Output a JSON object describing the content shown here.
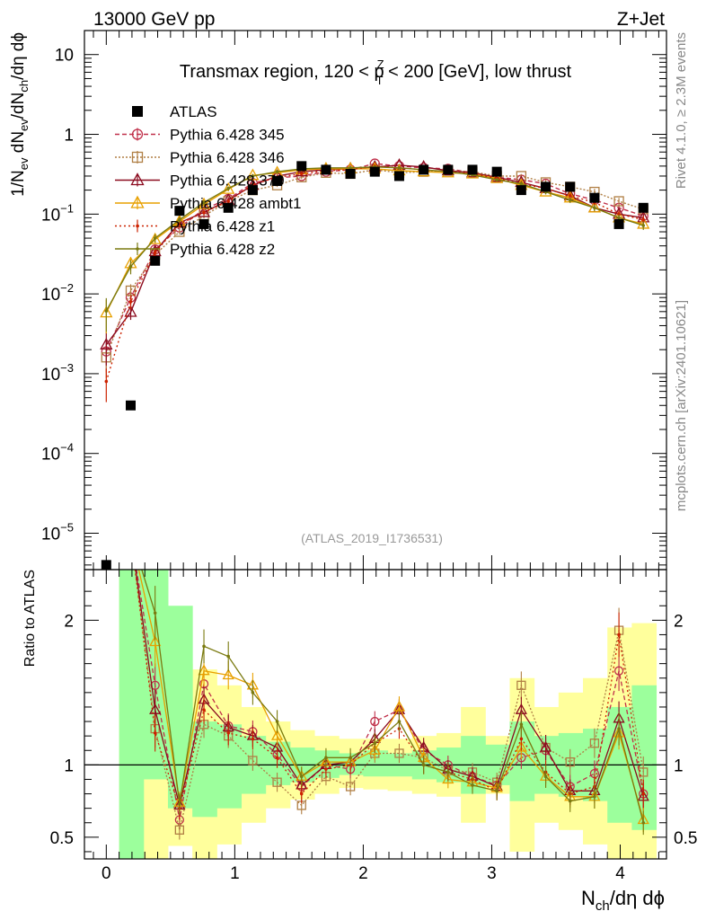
{
  "header": {
    "left": "13000 GeV pp",
    "right": "Z+Jet"
  },
  "side_labels": {
    "rivet": "Rivet 4.1.0, ≥ 2.3M events",
    "source": "mcplots.cern.ch [arXiv:2401.10621]"
  },
  "chart_data": [
    {
      "type": "scatter",
      "panel": "main",
      "title": "Transmax region, 120 < p_T^Z < 200 [GeV], low thrust",
      "title_parts": {
        "pre": "Transmax region, 120 < p",
        "sup": "Z",
        "sub": "T",
        "post": " < 200 [GeV], low thrust"
      },
      "watermark": "(ATLAS_2019_I1736531)",
      "ylabel": "1/N_ev dN_ev/dN_ch/dη dϕ",
      "ylabel_parts": [
        "1/N",
        "ev",
        " dN",
        "ev",
        "/dN",
        "ch",
        "/dη dϕ"
      ],
      "yscale": "log",
      "ylim": [
        3.5e-06,
        20
      ],
      "xlim": [
        -0.17,
        4.36
      ],
      "yticks": [
        {
          "value": 10,
          "label": "10"
        },
        {
          "value": 1,
          "label": "1"
        },
        {
          "value": 0.1,
          "label": "10",
          "exp": "−1"
        },
        {
          "value": 0.01,
          "label": "10",
          "exp": "−2"
        },
        {
          "value": 0.001,
          "label": "10",
          "exp": "−3"
        },
        {
          "value": 0.0001,
          "label": "10",
          "exp": "−4"
        },
        {
          "value": 1e-05,
          "label": "10",
          "exp": "−5"
        }
      ],
      "x": [
        0.0,
        0.19,
        0.38,
        0.57,
        0.76,
        0.95,
        1.14,
        1.33,
        1.52,
        1.71,
        1.9,
        2.09,
        2.28,
        2.47,
        2.66,
        2.85,
        3.04,
        3.23,
        3.42,
        3.61,
        3.8,
        3.99,
        4.18
      ],
      "series": [
        {
          "name": "ATLAS",
          "color": "#000000",
          "marker": "square-filled",
          "dash": "none",
          "values": [
            4e-06,
            0.0004,
            0.026,
            0.11,
            0.075,
            0.12,
            0.2,
            0.26,
            0.4,
            0.36,
            0.32,
            0.34,
            0.3,
            0.36,
            0.36,
            0.36,
            0.34,
            0.2,
            0.22,
            0.22,
            0.16,
            0.075,
            0.12
          ]
        },
        {
          "name": "Pythia 6.428 345",
          "color": "#c0304a",
          "marker": "circle-open",
          "dash": "5,3",
          "values": [
            0.0019,
            0.009,
            0.036,
            0.068,
            0.115,
            0.155,
            0.245,
            0.285,
            0.3,
            0.34,
            0.36,
            0.43,
            0.4,
            0.38,
            0.37,
            0.33,
            0.29,
            0.27,
            0.24,
            0.18,
            0.15,
            0.12,
            0.095
          ]
        },
        {
          "name": "Pythia 6.428 346",
          "color": "#b07f44",
          "marker": "square-open",
          "dash": "2,2",
          "values": [
            0.0016,
            0.011,
            0.031,
            0.06,
            0.095,
            0.145,
            0.2,
            0.23,
            0.29,
            0.33,
            0.32,
            0.36,
            0.33,
            0.34,
            0.35,
            0.34,
            0.3,
            0.3,
            0.25,
            0.22,
            0.19,
            0.145,
            0.115
          ]
        },
        {
          "name": "Pythia 6.428 370",
          "color": "#8b0a1e",
          "marker": "triangle-open",
          "dash": "none",
          "values": [
            0.0023,
            0.0059,
            0.034,
            0.078,
            0.105,
            0.15,
            0.23,
            0.3,
            0.34,
            0.36,
            0.37,
            0.39,
            0.41,
            0.39,
            0.35,
            0.33,
            0.29,
            0.25,
            0.21,
            0.17,
            0.12,
            0.1,
            0.09
          ]
        },
        {
          "name": "Pythia 6.428 ambt1",
          "color": "#e8a000",
          "marker": "triangle-open",
          "dash": "none",
          "values": [
            0.0058,
            0.024,
            0.048,
            0.081,
            0.132,
            0.205,
            0.305,
            0.33,
            0.36,
            0.37,
            0.37,
            0.37,
            0.35,
            0.34,
            0.33,
            0.32,
            0.28,
            0.23,
            0.19,
            0.16,
            0.12,
            0.09,
            0.075
          ]
        },
        {
          "name": "Pythia 6.428 z1",
          "color": "#cc2200",
          "marker": "dot",
          "dash": "2,3",
          "values": [
            0.0008,
            0.008,
            0.033,
            0.075,
            0.105,
            0.145,
            0.235,
            0.29,
            0.32,
            0.35,
            0.36,
            0.4,
            0.38,
            0.36,
            0.34,
            0.32,
            0.28,
            0.24,
            0.21,
            0.17,
            0.14,
            0.1,
            0.085
          ]
        },
        {
          "name": "Pythia 6.428 z2",
          "color": "#7a7a10",
          "marker": "dot",
          "dash": "none",
          "values": [
            0.0061,
            0.022,
            0.05,
            0.085,
            0.14,
            0.21,
            0.3,
            0.34,
            0.37,
            0.38,
            0.38,
            0.39,
            0.38,
            0.36,
            0.34,
            0.31,
            0.27,
            0.24,
            0.19,
            0.15,
            0.12,
            0.09,
            0.072
          ]
        }
      ]
    },
    {
      "type": "line",
      "panel": "ratio",
      "ylabel": "Ratio to ATLAS",
      "xlabel": "N_ch/dη dϕ",
      "xlabel_parts": [
        "N",
        "ch",
        "/dη dϕ"
      ],
      "ylim": [
        0.35,
        2.35
      ],
      "xlim": [
        -0.17,
        4.36
      ],
      "yticks": [
        {
          "value": 0.5,
          "label": "0.5"
        },
        {
          "value": 1,
          "label": "1"
        },
        {
          "value": 2,
          "label": "2"
        }
      ],
      "xticks": [
        {
          "value": 0,
          "label": "0"
        },
        {
          "value": 1,
          "label": "1"
        },
        {
          "value": 2,
          "label": "2"
        },
        {
          "value": 3,
          "label": "3"
        },
        {
          "value": 4,
          "label": "4"
        }
      ],
      "x": [
        0.0,
        0.19,
        0.38,
        0.57,
        0.76,
        0.95,
        1.14,
        1.33,
        1.52,
        1.71,
        1.9,
        2.09,
        2.28,
        2.47,
        2.66,
        2.85,
        3.04,
        3.23,
        3.42,
        3.61,
        3.8,
        3.99,
        4.18
      ],
      "band_edges": [
        0.1,
        0.29,
        0.48,
        0.67,
        0.86,
        1.05,
        1.24,
        1.43,
        1.62,
        1.81,
        2.0,
        2.19,
        2.38,
        2.57,
        2.76,
        2.95,
        3.14,
        3.33,
        3.52,
        3.71,
        3.9,
        4.09,
        4.28
      ],
      "band_green": [
        [
          0.1,
          4.0
        ],
        [
          0.9,
          4.0
        ],
        [
          0.7,
          2.1
        ],
        [
          0.64,
          1.3
        ],
        [
          0.7,
          1.28
        ],
        [
          0.8,
          1.2
        ],
        [
          0.86,
          1.16
        ],
        [
          0.88,
          1.12
        ],
        [
          0.91,
          1.1
        ],
        [
          0.93,
          1.08
        ],
        [
          0.92,
          1.1
        ],
        [
          0.92,
          1.08
        ],
        [
          0.9,
          1.1
        ],
        [
          0.88,
          1.12
        ],
        [
          0.8,
          1.2
        ],
        [
          0.86,
          1.14
        ],
        [
          0.75,
          1.3
        ],
        [
          0.8,
          1.2
        ],
        [
          0.78,
          1.22
        ],
        [
          0.75,
          1.25
        ],
        [
          0.6,
          1.4
        ],
        [
          0.55,
          1.55
        ]
      ],
      "band_yellow": [
        [
          0.1,
          4.0
        ],
        [
          0.1,
          4.0
        ],
        [
          0.44,
          1.7
        ],
        [
          0.34,
          1.66
        ],
        [
          0.45,
          1.55
        ],
        [
          0.6,
          1.4
        ],
        [
          0.7,
          1.3
        ],
        [
          0.76,
          1.24
        ],
        [
          0.8,
          1.2
        ],
        [
          0.84,
          1.18
        ],
        [
          0.83,
          1.18
        ],
        [
          0.82,
          1.18
        ],
        [
          0.8,
          1.2
        ],
        [
          0.78,
          1.22
        ],
        [
          0.6,
          1.4
        ],
        [
          0.8,
          1.2
        ],
        [
          0.4,
          1.6
        ],
        [
          0.6,
          1.4
        ],
        [
          0.55,
          1.5
        ],
        [
          0.45,
          1.6
        ],
        [
          0.25,
          1.95
        ],
        [
          0.3,
          1.98
        ]
      ],
      "reference": 1,
      "series": [
        {
          "name": "Pythia 6.428 345",
          "values": [
            null,
            null,
            1.55,
            0.62,
            1.56,
            1.27,
            1.23,
            1.07,
            0.85,
            1.0,
            0.97,
            1.3,
            1.38,
            1.1,
            1.0,
            0.92,
            0.86,
            1.05,
            1.1,
            0.85,
            0.94,
            1.65,
            0.8
          ]
        },
        {
          "name": "Pythia 6.428 346",
          "values": [
            null,
            null,
            1.25,
            0.55,
            1.28,
            1.2,
            1.03,
            0.88,
            0.72,
            0.92,
            0.85,
            1.08,
            1.08,
            1.05,
            0.96,
            0.95,
            0.88,
            1.55,
            1.12,
            1.02,
            1.15,
            1.93,
            0.95
          ]
        },
        {
          "name": "Pythia 6.428 370",
          "values": [
            null,
            null,
            1.38,
            0.72,
            1.45,
            1.26,
            1.2,
            1.12,
            0.86,
            1.0,
            1.02,
            1.18,
            1.38,
            1.12,
            0.97,
            0.92,
            0.85,
            1.38,
            1.12,
            0.82,
            0.82,
            1.32,
            0.78
          ]
        },
        {
          "name": "Pythia 6.428 ambt1",
          "values": [
            null,
            null,
            1.85,
            0.74,
            1.65,
            1.62,
            1.55,
            1.2,
            0.92,
            1.02,
            1.02,
            1.1,
            1.4,
            1.05,
            0.9,
            0.88,
            0.84,
            1.12,
            0.92,
            0.78,
            0.78,
            1.22,
            0.62
          ]
        },
        {
          "name": "Pythia 6.428 z1",
          "values": [
            null,
            null,
            1.22,
            0.7,
            1.38,
            1.22,
            1.18,
            1.05,
            0.8,
            0.97,
            1.0,
            1.15,
            1.25,
            1.0,
            0.95,
            0.9,
            0.82,
            1.18,
            0.95,
            0.8,
            0.85,
            1.9,
            0.8
          ]
        },
        {
          "name": "Pythia 6.428 z2",
          "values": [
            null,
            null,
            2.05,
            0.73,
            1.82,
            1.75,
            1.5,
            1.3,
            0.92,
            1.05,
            1.05,
            1.15,
            1.3,
            1.0,
            0.95,
            0.86,
            0.82,
            1.28,
            0.92,
            0.75,
            0.78,
            1.25,
            0.6
          ]
        }
      ]
    }
  ]
}
